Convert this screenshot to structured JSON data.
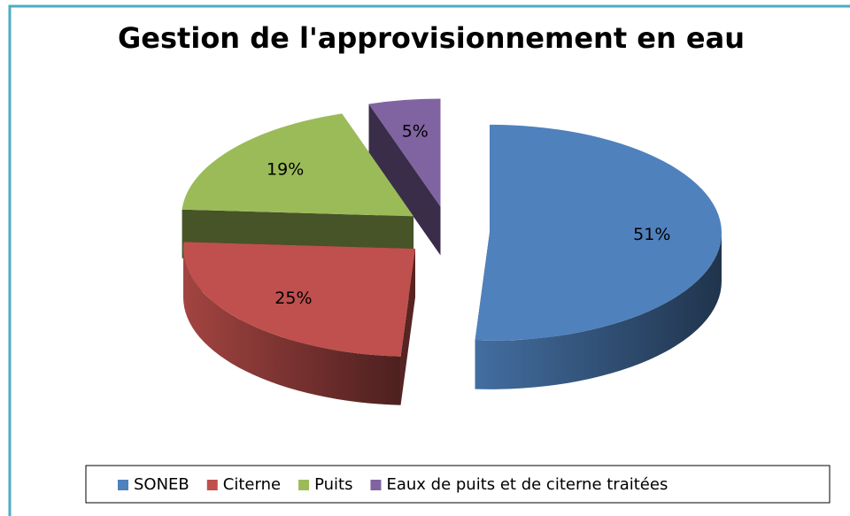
{
  "chart_data": {
    "type": "pie3d",
    "title": "Gestion de l'approvisionnement en eau",
    "categories": [
      "SONEB",
      "Citerne",
      "Puits",
      "Eaux de puits et de citerne traitées"
    ],
    "values": [
      51,
      25,
      19,
      5
    ],
    "value_labels": [
      "51%",
      "25%",
      "19%",
      "5%"
    ],
    "colors": [
      "#4f81bd",
      "#c0504d",
      "#9bbb59",
      "#8064a2"
    ],
    "legend": "bottom"
  }
}
